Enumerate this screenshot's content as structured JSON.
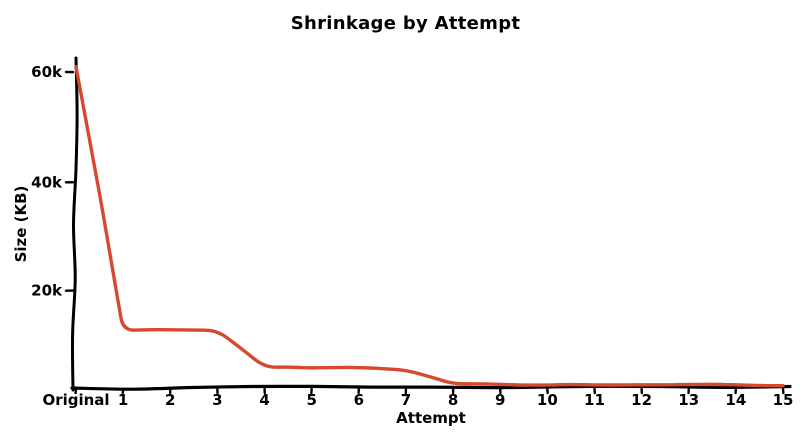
{
  "figure": {
    "background": "#ffffff"
  },
  "chart_data": {
    "type": "line",
    "title": "Shrinkage by Attempt",
    "xlabel": "Attempt",
    "ylabel": "Size (KB)",
    "style": "xkcd-hand-drawn",
    "grid": false,
    "legend": "none",
    "axis_color": "#000000",
    "categories": [
      "Original",
      "1",
      "2",
      "3",
      "4",
      "5",
      "6",
      "7",
      "8",
      "9",
      "10",
      "11",
      "12",
      "13",
      "14",
      "15"
    ],
    "series": [
      {
        "name": "Size (KB)",
        "color": "#d6492e",
        "values": [
          61000,
          11000,
          11000,
          11000,
          4000,
          3900,
          3800,
          3400,
          700,
          700,
          650,
          650,
          600,
          600,
          600,
          550
        ]
      }
    ],
    "y_ticks": [
      {
        "value": 20000,
        "label": "20k"
      },
      {
        "value": 40000,
        "label": "40k"
      },
      {
        "value": 60000,
        "label": "60k"
      }
    ],
    "ylim": [
      0,
      63000
    ]
  }
}
